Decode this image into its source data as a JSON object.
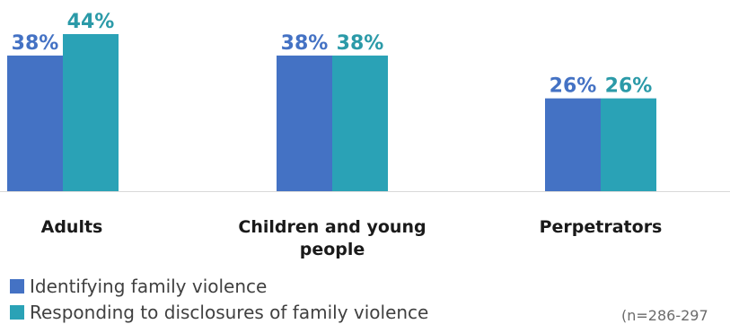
{
  "chart_data": {
    "type": "bar",
    "categories": [
      "Adults",
      "Children and young people",
      "Perpetrators"
    ],
    "series": [
      {
        "name": "Identifying family violence",
        "values": [
          38,
          38,
          26
        ],
        "labels": [
          "38%",
          "38%",
          "26%"
        ]
      },
      {
        "name": "Responding to disclosures of family violence",
        "values": [
          44,
          38,
          26
        ],
        "labels": [
          "44%",
          "38%",
          "26%"
        ]
      }
    ],
    "ylim": [
      0,
      44
    ],
    "grid": false,
    "legend_position": "bottom-left",
    "note": "(n=286-297"
  },
  "colors": {
    "series1": "#4472c4",
    "series2": "#2aa2b6",
    "label1": "#4472c4",
    "label2": "#2b9aa8"
  }
}
